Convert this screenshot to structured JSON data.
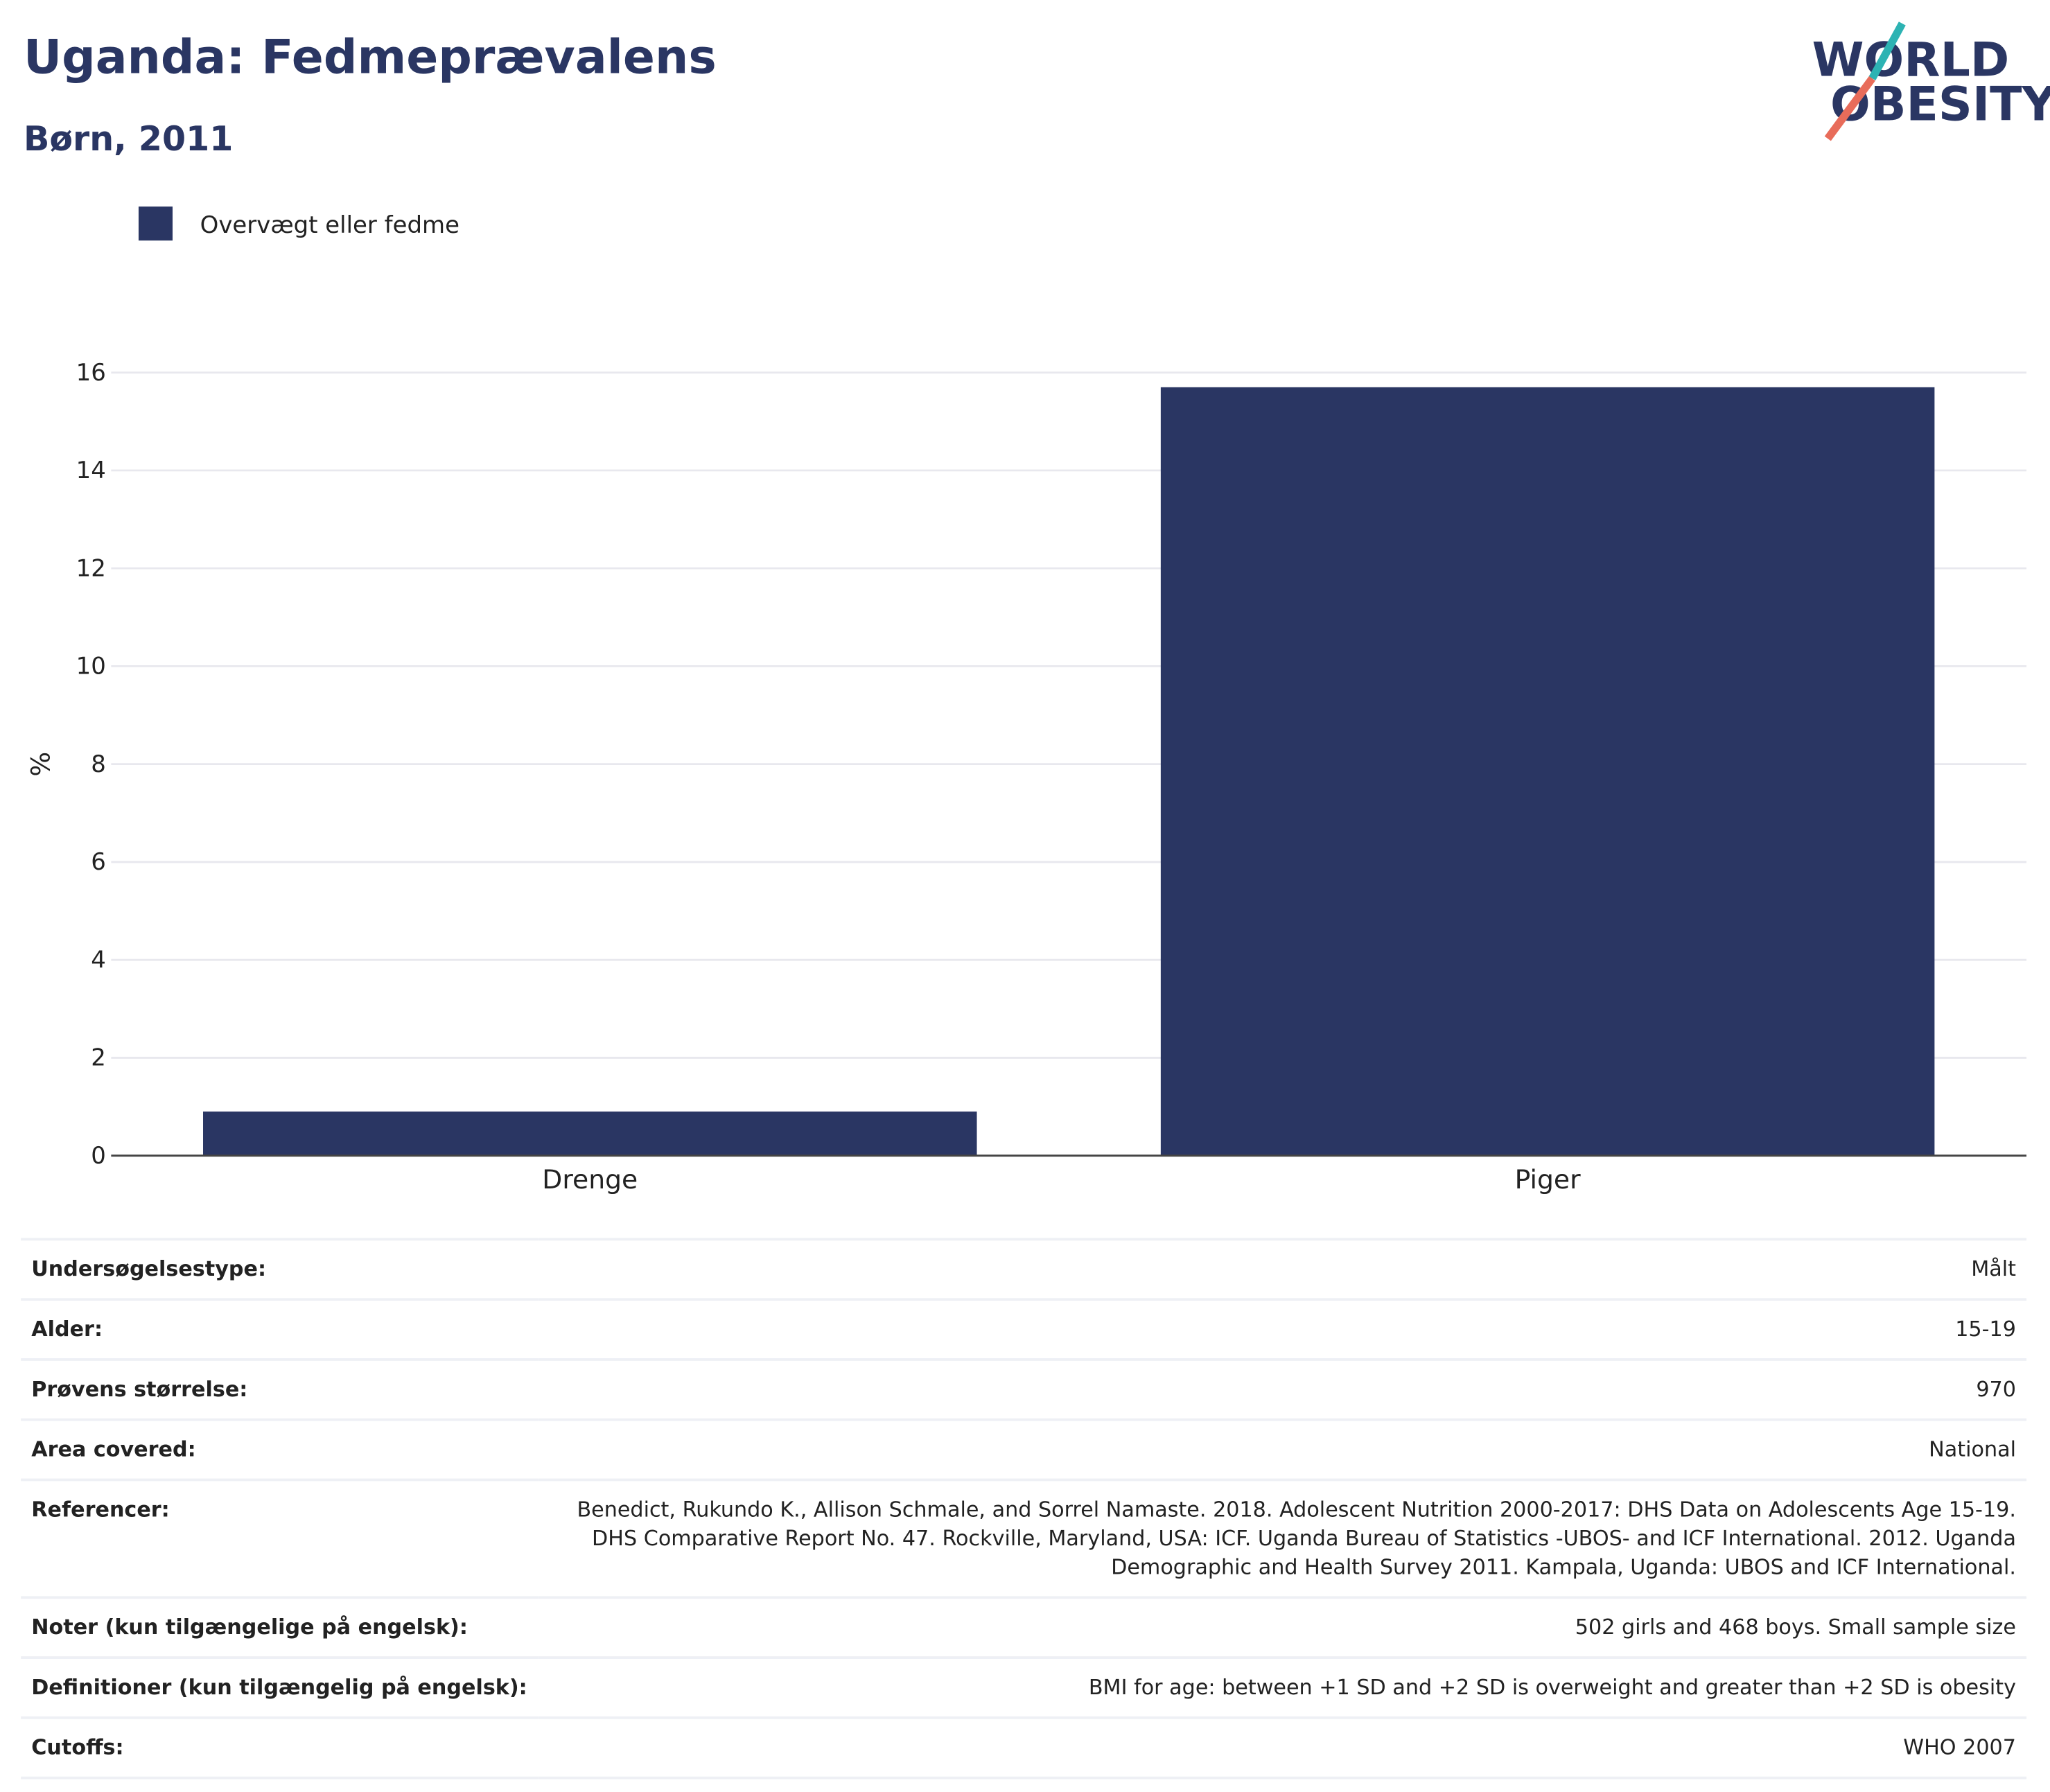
{
  "header": {
    "title": "Uganda: Fedmeprævalens",
    "subtitle": "Børn, 2011"
  },
  "logo": {
    "line1": "WORLD",
    "line2": "OBESITY"
  },
  "chart_data": {
    "type": "bar",
    "categories": [
      "Drenge",
      "Piger"
    ],
    "series": [
      {
        "name": "Overvægt eller fedme",
        "color": "#2a3663",
        "values": [
          0.9,
          15.7
        ]
      }
    ],
    "y_label": "%",
    "ylim": [
      0,
      16
    ],
    "yticks": [
      0,
      2,
      4,
      6,
      8,
      10,
      12,
      14,
      16
    ],
    "grid": true
  },
  "table": {
    "rows": [
      [
        "Undersøgelsestype:",
        "Målt"
      ],
      [
        "Alder:",
        "15-19"
      ],
      [
        "Prøvens størrelse:",
        "970"
      ],
      [
        "Area covered:",
        "National"
      ],
      [
        "Referencer:",
        "Benedict, Rukundo K., Allison Schmale, and Sorrel Namaste. 2018. Adolescent Nutrition 2000-2017: DHS Data on Adolescents Age 15-19. DHS Comparative Report No. 47. Rockville, Maryland, USA: ICF. Uganda Bureau of Statistics -UBOS- and ICF International. 2012. Uganda Demographic and Health Survey 2011. Kampala, Uganda: UBOS and ICF International."
      ],
      [
        "Noter (kun tilgængelige på engelsk):",
        "502 girls and 468 boys. Small sample size"
      ],
      [
        "Definitioner (kun tilgængelig på engelsk):",
        "BMI for age: between +1 SD and +2 SD is overweight and greater than +2 SD is obesity"
      ],
      [
        "Cutoffs:",
        "WHO 2007"
      ]
    ]
  }
}
